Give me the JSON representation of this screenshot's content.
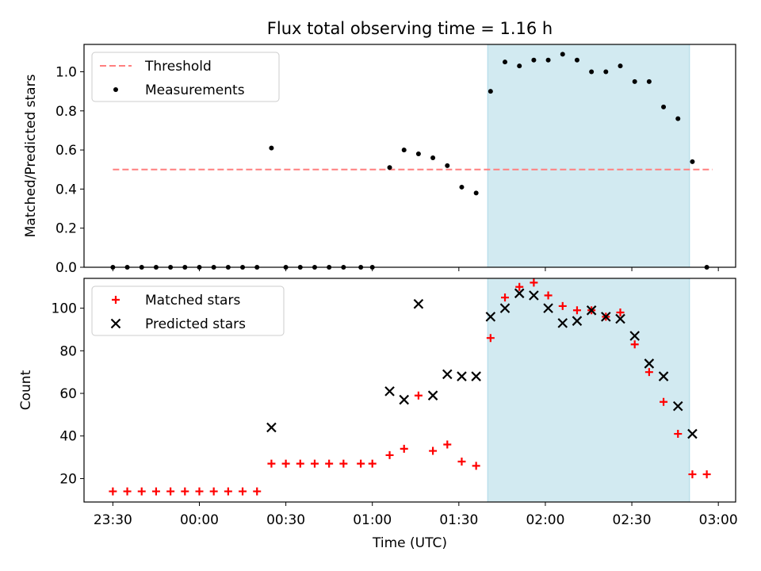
{
  "chart_data": [
    {
      "type": "scatter",
      "title": "Flux total observing time = 1.16 h",
      "ylabel": "Matched/Predicted stars",
      "ylim": [
        0,
        1.14
      ],
      "yticks": [
        0.0,
        0.2,
        0.4,
        0.6,
        0.8,
        1.0
      ],
      "ytick_labels": [
        "0.0",
        "0.2",
        "0.4",
        "0.6",
        "0.8",
        "1.0"
      ],
      "highlight_span": [
        "01:40",
        "02:50"
      ],
      "highlight_color": "#add8e6",
      "legend_position": "upper-left",
      "series": [
        {
          "name": "Threshold",
          "kind": "dashed-line",
          "color": "#ff7f7f",
          "x": [
            "23:30",
            "02:58"
          ],
          "y": [
            0.5,
            0.5
          ]
        },
        {
          "name": "Measurements",
          "kind": "dot",
          "color": "#000000",
          "x": [
            "23:30",
            "23:35",
            "23:40",
            "23:45",
            "23:50",
            "23:55",
            "00:00",
            "00:05",
            "00:10",
            "00:15",
            "00:20",
            "00:25",
            "00:30",
            "00:35",
            "00:40",
            "00:45",
            "00:50",
            "00:56",
            "01:00",
            "01:06",
            "01:11",
            "01:16",
            "01:21",
            "01:26",
            "01:31",
            "01:36",
            "01:41",
            "01:46",
            "01:51",
            "01:56",
            "02:01",
            "02:06",
            "02:11",
            "02:16",
            "02:21",
            "02:26",
            "02:31",
            "02:36",
            "02:41",
            "02:46",
            "02:51",
            "02:56"
          ],
          "y": [
            0.0,
            0.0,
            0.0,
            0.0,
            0.0,
            0.0,
            0.0,
            0.0,
            0.0,
            0.0,
            0.0,
            0.61,
            0.0,
            0.0,
            0.0,
            0.0,
            0.0,
            0.0,
            0.0,
            0.51,
            0.6,
            0.58,
            0.56,
            0.52,
            0.41,
            0.38,
            0.9,
            1.05,
            1.03,
            1.06,
            1.06,
            1.09,
            1.06,
            1.0,
            1.0,
            1.03,
            0.95,
            0.95,
            0.82,
            0.76,
            0.54,
            0.0
          ]
        }
      ]
    },
    {
      "type": "scatter",
      "ylabel": "Count",
      "xlabel": "Time (UTC)",
      "ylim": [
        9,
        114
      ],
      "yticks": [
        20,
        40,
        60,
        80,
        100
      ],
      "ytick_labels": [
        "20",
        "40",
        "60",
        "80",
        "100"
      ],
      "xticks": [
        "23:30",
        "00:00",
        "00:30",
        "01:00",
        "01:30",
        "02:00",
        "02:30",
        "03:00"
      ],
      "xlim_minutes_from_2330": [
        -10,
        216
      ],
      "highlight_span": [
        "01:40",
        "02:50"
      ],
      "highlight_color": "#add8e6",
      "legend_position": "upper-left",
      "series": [
        {
          "name": "Matched stars",
          "marker": "+",
          "color": "#ff0000",
          "x": [
            "23:30",
            "23:35",
            "23:40",
            "23:45",
            "23:50",
            "23:55",
            "00:00",
            "00:05",
            "00:10",
            "00:15",
            "00:20",
            "00:25",
            "00:30",
            "00:35",
            "00:40",
            "00:45",
            "00:50",
            "00:56",
            "01:00",
            "01:06",
            "01:11",
            "01:16",
            "01:21",
            "01:26",
            "01:31",
            "01:36",
            "01:41",
            "01:46",
            "01:51",
            "01:56",
            "02:01",
            "02:06",
            "02:11",
            "02:16",
            "02:21",
            "02:26",
            "02:31",
            "02:36",
            "02:41",
            "02:46",
            "02:51",
            "02:56"
          ],
          "y": [
            14,
            14,
            14,
            14,
            14,
            14,
            14,
            14,
            14,
            14,
            14,
            27,
            27,
            27,
            27,
            27,
            27,
            27,
            27,
            31,
            34,
            59,
            33,
            36,
            28,
            26,
            86,
            105,
            110,
            112,
            106,
            101,
            99,
            99,
            96,
            98,
            83,
            70,
            56,
            41,
            22,
            22
          ]
        },
        {
          "name": "Predicted stars",
          "marker": "x",
          "color": "#000000",
          "x": [
            "00:25",
            "01:06",
            "01:11",
            "01:16",
            "01:21",
            "01:26",
            "01:31",
            "01:36",
            "01:41",
            "01:46",
            "01:51",
            "01:56",
            "02:01",
            "02:06",
            "02:11",
            "02:16",
            "02:21",
            "02:26",
            "02:31",
            "02:36",
            "02:41",
            "02:46",
            "02:51"
          ],
          "y": [
            44,
            61,
            57,
            102,
            59,
            69,
            68,
            68,
            96,
            100,
            107,
            106,
            100,
            93,
            94,
            99,
            96,
            95,
            87,
            74,
            68,
            54,
            41
          ]
        }
      ]
    }
  ]
}
